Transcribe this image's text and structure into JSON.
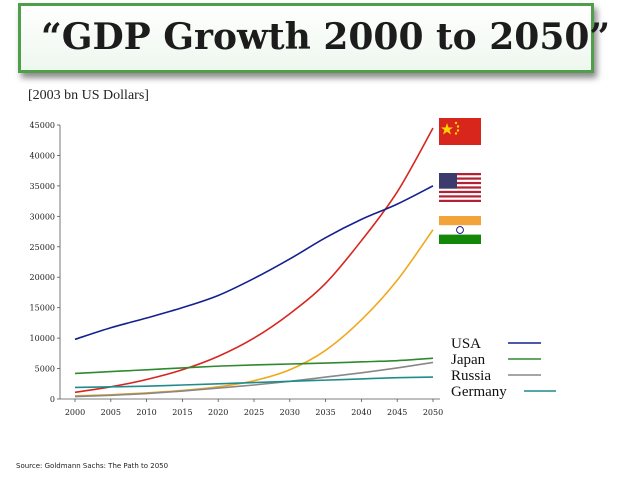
{
  "slide": {
    "title": "“GDP Growth 2000 to 2050”",
    "unit_label": "[2003 bn US Dollars]",
    "source": "Source: Goldmann Sachs: The Path to 2050"
  },
  "chart_data": {
    "type": "line",
    "title": "“GDP Growth 2000 to 2050”",
    "ylabel": "[2003 bn US Dollars]",
    "xlabel": "",
    "x": [
      2000,
      2005,
      2010,
      2015,
      2020,
      2025,
      2030,
      2035,
      2040,
      2045,
      2050
    ],
    "ylim": [
      0,
      45000
    ],
    "yticks": [
      0,
      5000,
      10000,
      15000,
      20000,
      25000,
      30000,
      35000,
      40000,
      45000
    ],
    "grid": false,
    "legend": "bottom-right",
    "series": [
      {
        "name": "China",
        "color": "#d6261f",
        "legend": false,
        "values": [
          1100,
          2000,
          3200,
          4800,
          7000,
          10000,
          14000,
          19000,
          26000,
          34000,
          44500
        ]
      },
      {
        "name": "USA",
        "color": "#14208f",
        "legend": true,
        "values": [
          9800,
          11700,
          13300,
          15000,
          17000,
          19800,
          23000,
          26500,
          29500,
          32000,
          35000
        ]
      },
      {
        "name": "India",
        "color": "#f0a81c",
        "legend": false,
        "values": [
          500,
          700,
          1000,
          1400,
          2000,
          3000,
          4800,
          8000,
          13000,
          19500,
          27800
        ]
      },
      {
        "name": "Japan",
        "color": "#2f8a2f",
        "legend": true,
        "values": [
          4200,
          4500,
          4800,
          5100,
          5400,
          5600,
          5750,
          5900,
          6100,
          6300,
          6700
        ]
      },
      {
        "name": "Russia",
        "color": "#888888",
        "legend": true,
        "values": [
          400,
          600,
          900,
          1300,
          1800,
          2300,
          2900,
          3600,
          4300,
          5100,
          6000
        ]
      },
      {
        "name": "Germany",
        "color": "#1f8c8c",
        "legend": true,
        "values": [
          1900,
          2000,
          2100,
          2300,
          2500,
          2700,
          2900,
          3100,
          3300,
          3500,
          3600
        ]
      }
    ],
    "flags": [
      "china-flag",
      "usa-flag",
      "india-flag"
    ]
  }
}
